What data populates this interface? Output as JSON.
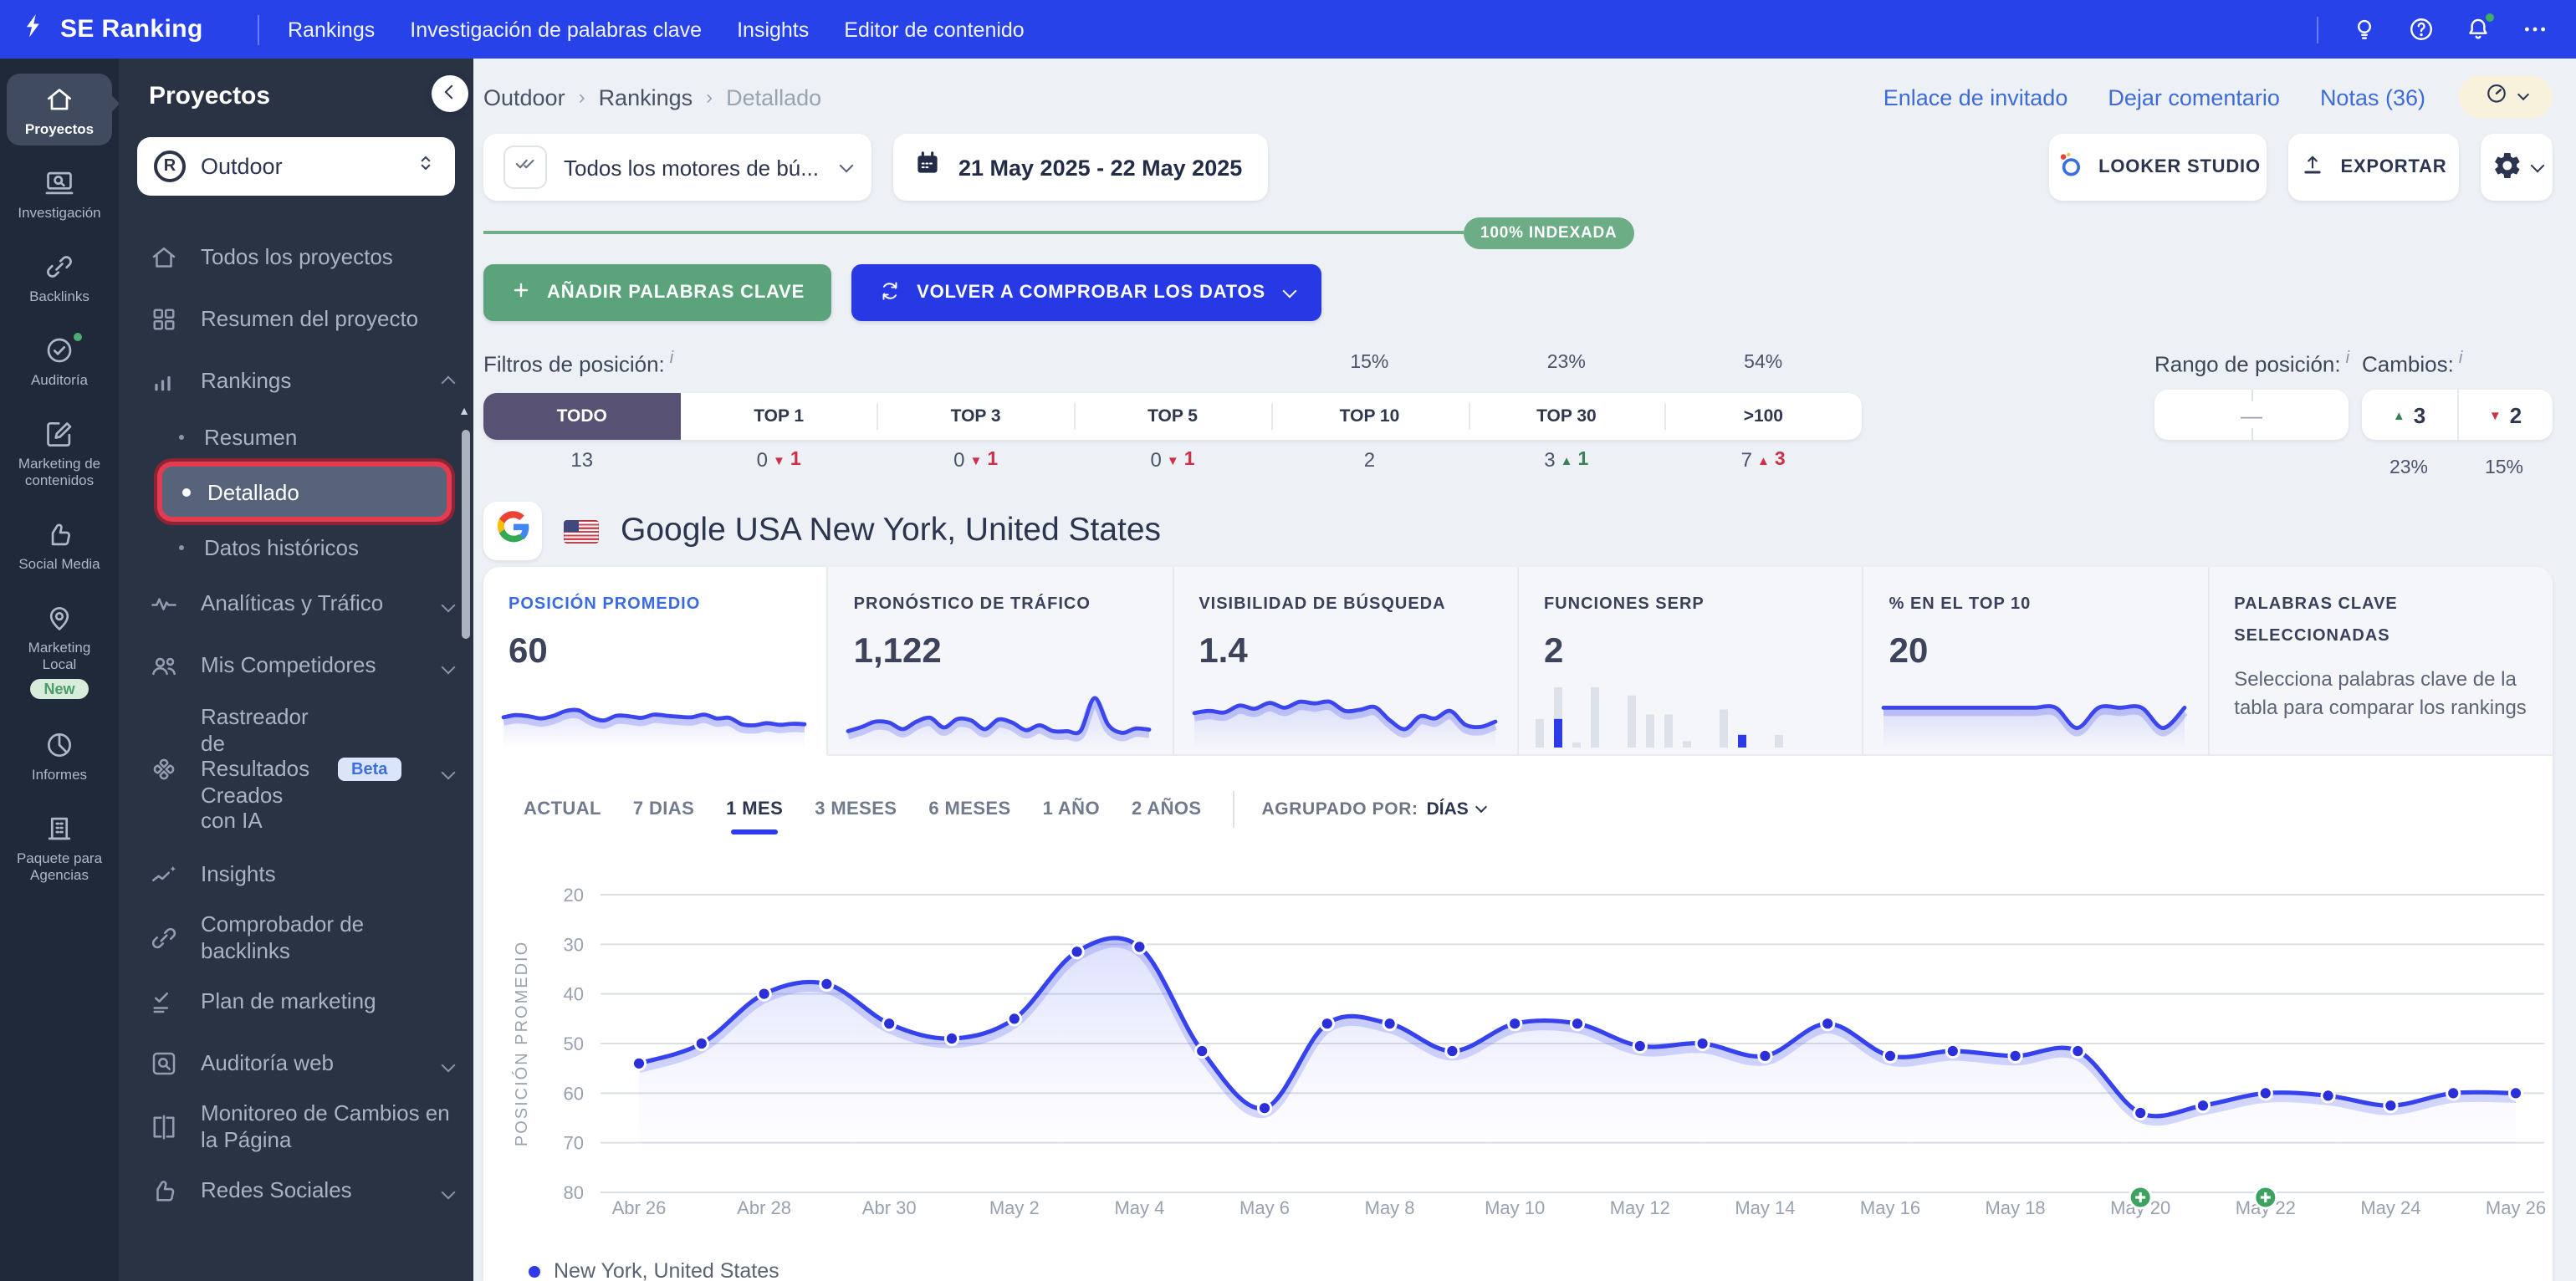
{
  "colors": {
    "topbar": "#2742e8",
    "accent_blue": "#2b3ce8",
    "green": "#5ba47b",
    "red": "#cf3048",
    "good_green": "#398258",
    "chart_line": "#3542ee",
    "badge_green": "#6cad85",
    "highlight_ring": "#e23c52"
  },
  "topbar": {
    "brand": "SE Ranking",
    "menu": [
      "Rankings",
      "Investigación de palabras clave",
      "Insights",
      "Editor de contenido"
    ]
  },
  "rail": {
    "items": [
      {
        "label": "Proyectos",
        "icon": "home",
        "active": true
      },
      {
        "label": "Investigación",
        "icon": "monitor-search"
      },
      {
        "label": "Backlinks",
        "icon": "link"
      },
      {
        "label": "Auditoría",
        "icon": "check-circle",
        "status_dot": true
      },
      {
        "label": "Marketing de contenidos",
        "icon": "pencil-square"
      },
      {
        "label": "Social Media",
        "icon": "thumb"
      },
      {
        "label": "Marketing Local",
        "icon": "pin",
        "badge": "New"
      },
      {
        "label": "Informes",
        "icon": "pie"
      },
      {
        "label": "Paquete para Agencias",
        "icon": "building"
      }
    ]
  },
  "sidebar": {
    "title": "Proyectos",
    "project": "Outdoor",
    "items": [
      {
        "label": "Todos los proyectos",
        "icon": "home"
      },
      {
        "label": "Resumen del proyecto",
        "icon": "grid"
      },
      {
        "label": "Rankings",
        "icon": "bars",
        "expanded": true
      },
      {
        "label": "Resumen",
        "sub": true
      },
      {
        "label": "Detallado",
        "sub": true,
        "selected": true
      },
      {
        "label": "Datos históricos",
        "sub": true
      },
      {
        "label": "Analíticas y Tráfico",
        "icon": "pulse",
        "chevron": true
      },
      {
        "label": "Mis Competidores",
        "icon": "people",
        "chevron": true
      },
      {
        "label": "Rastreador de Resultados Creados con IA",
        "icon": "knot",
        "chevron": true,
        "badge": "Beta",
        "tall": true
      },
      {
        "label": "Insights",
        "icon": "trend"
      },
      {
        "label": "Comprobador de backlinks",
        "icon": "link"
      },
      {
        "label": "Plan de marketing",
        "icon": "checklist"
      },
      {
        "label": "Auditoría web",
        "icon": "search-box",
        "chevron": true
      },
      {
        "label": "Monitoreo de Cambios en la Página",
        "icon": "brackets"
      },
      {
        "label": "Redes Sociales",
        "icon": "thumb",
        "chevron": true
      }
    ]
  },
  "header": {
    "breadcrumb": [
      "Outdoor",
      "Rankings",
      "Detallado"
    ],
    "links": [
      "Enlace de invitado",
      "Dejar comentario",
      "Notas (36)"
    ]
  },
  "toolbar": {
    "engines": "Todos los motores de bú...",
    "dates": "21 May 2025 - 22 May 2025",
    "looker": "LOOKER STUDIO",
    "export": "EXPORTAR"
  },
  "indexed": "100% INDEXADA",
  "actions": {
    "add": "AÑADIR PALABRAS CLAVE",
    "recheck": "VOLVER A COMPROBAR LOS DATOS"
  },
  "filters": {
    "title": "Filtros de posición:",
    "tabs": [
      {
        "label": "TODO",
        "count": "13",
        "active": true
      },
      {
        "label": "TOP 1",
        "count": "0",
        "delta": "1",
        "dir": "down",
        "tone": "bad"
      },
      {
        "label": "TOP 3",
        "count": "0",
        "delta": "1",
        "dir": "down",
        "tone": "bad"
      },
      {
        "label": "TOP 5",
        "count": "0",
        "delta": "1",
        "dir": "down",
        "tone": "bad"
      },
      {
        "label": "TOP 10",
        "count": "2",
        "percent": "15%"
      },
      {
        "label": "TOP 30",
        "count": "3",
        "delta": "1",
        "dir": "up",
        "tone": "good",
        "percent": "23%"
      },
      {
        "label": ">100",
        "count": "7",
        "delta": "3",
        "dir": "up",
        "tone": "bad",
        "percent": "54%"
      }
    ],
    "range_label": "Rango de posición:",
    "range_value": "—",
    "changes_label": "Cambios:",
    "changes": {
      "up": "3",
      "up_percent": "23%",
      "down": "2",
      "down_percent": "15%"
    }
  },
  "engine_title": "Google USA New York, United States",
  "cards": [
    {
      "label": "POSICIÓN PROMEDIO",
      "value": "60",
      "active": true,
      "type": "line",
      "spark": [
        44,
        48,
        46,
        42,
        47,
        56,
        57,
        44,
        38,
        47,
        46,
        43,
        49,
        47,
        45,
        44,
        49,
        42,
        43,
        31,
        29,
        33,
        30,
        32,
        31
      ]
    },
    {
      "label": "PRONÓSTICO DE TRÁFICO",
      "value": "1,122",
      "type": "line",
      "spark": [
        18,
        26,
        36,
        34,
        22,
        36,
        43,
        25,
        41,
        38,
        22,
        40,
        34,
        20,
        29,
        18,
        18,
        19,
        80,
        30,
        15,
        23,
        21
      ]
    },
    {
      "label": "VISIBILIDAD DE BÚSQUEDA",
      "value": "1.4",
      "type": "line",
      "spark": [
        52,
        56,
        53,
        66,
        60,
        71,
        62,
        73,
        70,
        73,
        56,
        58,
        63,
        38,
        22,
        46,
        42,
        56,
        30,
        26,
        36
      ]
    },
    {
      "label": "FUNCIONES SERP",
      "value": "2",
      "type": "bars",
      "bars": [
        45,
        95,
        8,
        95,
        0,
        82,
        52,
        52,
        10,
        0,
        60,
        20,
        0,
        20
      ],
      "bar_colors": [
        "g",
        "gb",
        "g",
        "g",
        "",
        "g",
        "g",
        "g",
        "g",
        "",
        "g",
        "b",
        "",
        "g"
      ]
    },
    {
      "label": "% EN EL TOP 10",
      "value": "20",
      "type": "line",
      "spark": [
        62,
        62,
        62,
        62,
        62,
        62,
        62,
        62,
        62,
        24,
        62,
        62,
        62,
        24,
        62
      ]
    },
    {
      "label": "PALABRAS CLAVE SELECCIONADAS",
      "type": "text",
      "body": "Selecciona palabras clave de la tabla para comparar los rankings"
    }
  ],
  "periods": {
    "tabs": [
      "ACTUAL",
      "7 DIAS",
      "1 MES",
      "3 MESES",
      "6 MESES",
      "1 AÑO",
      "2 AÑOS"
    ],
    "active": "1 MES",
    "group_label": "AGRUPADO POR:",
    "group_value": "DÍAS"
  },
  "chart_data": {
    "type": "line",
    "title": "",
    "xlabel": "",
    "ylabel": "POSICIÓN PROMEDIO",
    "y_reversed": true,
    "ylim": [
      20,
      80
    ],
    "yticks": [
      20,
      30,
      40,
      50,
      60,
      70,
      80
    ],
    "x_label_every": 2,
    "x": [
      "Abr 26",
      "Abr 27",
      "Abr 28",
      "Abr 29",
      "Abr 30",
      "May 1",
      "May 2",
      "May 3",
      "May 4",
      "May 5",
      "May 6",
      "May 7",
      "May 8",
      "May 9",
      "May 10",
      "May 11",
      "May 12",
      "May 13",
      "May 14",
      "May 15",
      "May 16",
      "May 17",
      "May 18",
      "May 19",
      "May 20",
      "May 21",
      "May 22",
      "May 23",
      "May 24",
      "May 25",
      "May 26"
    ],
    "series": [
      {
        "name": "New York, United States",
        "values": [
          54,
          50,
          40,
          38,
          46,
          49,
          45,
          31.5,
          30.5,
          51.5,
          63,
          46,
          46,
          51.5,
          46,
          46,
          50.5,
          50,
          52.5,
          46,
          52.5,
          51.5,
          52.5,
          51.5,
          64,
          62.5,
          60,
          60.5,
          62.5,
          60,
          60
        ]
      }
    ],
    "note_marker_indices": [
      24,
      26
    ],
    "legend_position": "bottom",
    "grid": true
  },
  "legend": {
    "series": "New York, United States"
  }
}
